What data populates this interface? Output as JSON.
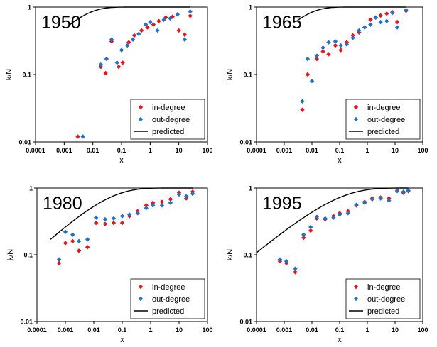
{
  "colors": {
    "in_degree": "#e8141c",
    "out_degree": "#1f72c9",
    "predicted": "#000000"
  },
  "chart_data": [
    {
      "type": "scatter",
      "title": "1950",
      "xlabel": "x",
      "ylabel": "k/N",
      "xscale": "log",
      "yscale": "log",
      "xlim": [
        0.0001,
        100
      ],
      "ylim": [
        0.01,
        1
      ],
      "x_ticks": [
        "0.0001",
        "0.001",
        "0.01",
        "0.1",
        "1",
        "10",
        "100"
      ],
      "y_ticks": [
        "0.01",
        "0.1",
        "1"
      ],
      "legend_position": "bottom-right",
      "series": [
        {
          "name": "in-degree",
          "marker": "diamond",
          "color": "in_degree",
          "points": [
            [
              0.003,
              0.012
            ],
            [
              0.019,
              0.13
            ],
            [
              0.028,
              0.105
            ],
            [
              0.045,
              0.31
            ],
            [
              0.08,
              0.13
            ],
            [
              0.11,
              0.15
            ],
            [
              0.18,
              0.3
            ],
            [
              0.28,
              0.38
            ],
            [
              0.5,
              0.45
            ],
            [
              0.8,
              0.5
            ],
            [
              1.3,
              0.55
            ],
            [
              2,
              0.62
            ],
            [
              3.5,
              0.7
            ],
            [
              6,
              0.72
            ],
            [
              10,
              0.45
            ],
            [
              16,
              0.39
            ],
            [
              25,
              0.74
            ]
          ]
        },
        {
          "name": "out-degree",
          "marker": "diamond",
          "color": "out_degree",
          "points": [
            [
              0.0045,
              0.012
            ],
            [
              0.019,
              0.14
            ],
            [
              0.03,
              0.17
            ],
            [
              0.045,
              0.33
            ],
            [
              0.07,
              0.15
            ],
            [
              0.1,
              0.23
            ],
            [
              0.16,
              0.27
            ],
            [
              0.25,
              0.33
            ],
            [
              0.4,
              0.4
            ],
            [
              0.7,
              0.55
            ],
            [
              1,
              0.6
            ],
            [
              1.8,
              0.45
            ],
            [
              3,
              0.65
            ],
            [
              5,
              0.68
            ],
            [
              9,
              0.78
            ],
            [
              16,
              0.33
            ],
            [
              25,
              0.86
            ]
          ]
        },
        {
          "name": "predicted",
          "type": "line",
          "color": "predicted",
          "x_range": [
            0.0015,
            25
          ],
          "x0": 0.0025,
          "note_formula": "1-exp(-(x/x0)^0.5)"
        }
      ]
    },
    {
      "type": "scatter",
      "title": "1965",
      "xlabel": "x",
      "ylabel": "k/N",
      "xscale": "log",
      "yscale": "log",
      "xlim": [
        0.0001,
        100
      ],
      "ylim": [
        0.01,
        1
      ],
      "x_ticks": [
        "0.0001",
        "0.001",
        "0.01",
        "0.1",
        "1",
        "10",
        "100"
      ],
      "y_ticks": [
        "0.01",
        "0.1",
        "1"
      ],
      "legend_position": "bottom-right",
      "series": [
        {
          "name": "in-degree",
          "marker": "diamond",
          "color": "in_degree",
          "points": [
            [
              0.0045,
              0.03
            ],
            [
              0.007,
              0.1
            ],
            [
              0.015,
              0.17
            ],
            [
              0.025,
              0.22
            ],
            [
              0.04,
              0.2
            ],
            [
              0.07,
              0.27
            ],
            [
              0.11,
              0.23
            ],
            [
              0.18,
              0.3
            ],
            [
              0.3,
              0.38
            ],
            [
              0.5,
              0.42
            ],
            [
              0.8,
              0.5
            ],
            [
              1.3,
              0.65
            ],
            [
              2,
              0.7
            ],
            [
              3,
              0.75
            ],
            [
              5,
              0.8
            ],
            [
              8,
              0.84
            ],
            [
              12,
              0.6
            ],
            [
              25,
              0.88
            ]
          ]
        },
        {
          "name": "out-degree",
          "marker": "diamond",
          "color": "out_degree",
          "points": [
            [
              0.0045,
              0.04
            ],
            [
              0.007,
              0.17
            ],
            [
              0.01,
              0.08
            ],
            [
              0.015,
              0.19
            ],
            [
              0.025,
              0.25
            ],
            [
              0.04,
              0.3
            ],
            [
              0.07,
              0.31
            ],
            [
              0.11,
              0.27
            ],
            [
              0.18,
              0.28
            ],
            [
              0.3,
              0.35
            ],
            [
              0.5,
              0.45
            ],
            [
              0.8,
              0.5
            ],
            [
              1.3,
              0.55
            ],
            [
              2,
              0.7
            ],
            [
              3,
              0.6
            ],
            [
              5,
              0.62
            ],
            [
              8,
              0.82
            ],
            [
              12,
              0.5
            ],
            [
              25,
              0.9
            ]
          ]
        },
        {
          "name": "predicted",
          "type": "line",
          "color": "predicted",
          "x_range": [
            0.003,
            25
          ],
          "x0": 0.003,
          "note_formula": "1-exp(-(x/x0)^0.5)"
        }
      ]
    },
    {
      "type": "scatter",
      "title": "1980",
      "xlabel": "x",
      "ylabel": "k/N",
      "xscale": "log",
      "yscale": "log",
      "xlim": [
        0.0001,
        100
      ],
      "ylim": [
        0.01,
        1
      ],
      "x_ticks": [
        "0.0001",
        "0.001",
        "0.01",
        "0.1",
        "1",
        "10",
        "100"
      ],
      "y_ticks": [
        "0.01",
        "0.1",
        "1"
      ],
      "legend_position": "bottom-right",
      "series": [
        {
          "name": "in-degree",
          "marker": "diamond",
          "color": "in_degree",
          "points": [
            [
              0.0006,
              0.075
            ],
            [
              0.001,
              0.15
            ],
            [
              0.0018,
              0.16
            ],
            [
              0.003,
              0.115
            ],
            [
              0.006,
              0.13
            ],
            [
              0.012,
              0.3
            ],
            [
              0.025,
              0.29
            ],
            [
              0.05,
              0.3
            ],
            [
              0.1,
              0.3
            ],
            [
              0.18,
              0.38
            ],
            [
              0.35,
              0.45
            ],
            [
              0.7,
              0.55
            ],
            [
              1.2,
              0.6
            ],
            [
              2.5,
              0.62
            ],
            [
              5,
              0.68
            ],
            [
              10,
              0.85
            ],
            [
              18,
              0.7
            ],
            [
              30,
              0.88
            ]
          ]
        },
        {
          "name": "out-degree",
          "marker": "diamond",
          "color": "out_degree",
          "points": [
            [
              0.0006,
              0.085
            ],
            [
              0.001,
              0.22
            ],
            [
              0.0018,
              0.2
            ],
            [
              0.003,
              0.16
            ],
            [
              0.006,
              0.17
            ],
            [
              0.012,
              0.36
            ],
            [
              0.025,
              0.34
            ],
            [
              0.05,
              0.35
            ],
            [
              0.1,
              0.38
            ],
            [
              0.18,
              0.4
            ],
            [
              0.35,
              0.42
            ],
            [
              0.7,
              0.5
            ],
            [
              1.2,
              0.55
            ],
            [
              2.5,
              0.55
            ],
            [
              5,
              0.6
            ],
            [
              10,
              0.8
            ],
            [
              18,
              0.75
            ],
            [
              30,
              0.82
            ]
          ]
        },
        {
          "name": "predicted",
          "type": "line",
          "color": "predicted",
          "x_range": [
            0.0003,
            30
          ],
          "x0": 0.02,
          "note_formula": "1-exp(-(x/x0)^0.4)"
        }
      ]
    },
    {
      "type": "scatter",
      "title": "1995",
      "xlabel": "x",
      "ylabel": "k/N",
      "xscale": "log",
      "yscale": "log",
      "xlim": [
        0.0001,
        100
      ],
      "ylim": [
        0.01,
        1
      ],
      "x_ticks": [
        "0.0001",
        "0.001",
        "0.01",
        "0.1",
        "1",
        "10",
        "100"
      ],
      "y_ticks": [
        "0.01",
        "0.1",
        "1"
      ],
      "legend_position": "bottom-right",
      "series": [
        {
          "name": "in-degree",
          "marker": "diamond",
          "color": "in_degree",
          "points": [
            [
              0.0007,
              0.08
            ],
            [
              0.0012,
              0.075
            ],
            [
              0.0025,
              0.055
            ],
            [
              0.005,
              0.18
            ],
            [
              0.009,
              0.23
            ],
            [
              0.015,
              0.35
            ],
            [
              0.03,
              0.34
            ],
            [
              0.06,
              0.38
            ],
            [
              0.1,
              0.42
            ],
            [
              0.2,
              0.45
            ],
            [
              0.4,
              0.55
            ],
            [
              0.8,
              0.62
            ],
            [
              1.5,
              0.7
            ],
            [
              3,
              0.72
            ],
            [
              6,
              0.7
            ],
            [
              12,
              0.92
            ],
            [
              20,
              0.85
            ],
            [
              30,
              0.9
            ]
          ]
        },
        {
          "name": "out-degree",
          "marker": "diamond",
          "color": "out_degree",
          "points": [
            [
              0.0007,
              0.085
            ],
            [
              0.0012,
              0.08
            ],
            [
              0.0025,
              0.062
            ],
            [
              0.005,
              0.2
            ],
            [
              0.009,
              0.26
            ],
            [
              0.015,
              0.37
            ],
            [
              0.03,
              0.35
            ],
            [
              0.06,
              0.36
            ],
            [
              0.1,
              0.4
            ],
            [
              0.2,
              0.42
            ],
            [
              0.4,
              0.56
            ],
            [
              0.8,
              0.6
            ],
            [
              1.5,
              0.68
            ],
            [
              3,
              0.7
            ],
            [
              6,
              0.65
            ],
            [
              12,
              0.9
            ],
            [
              20,
              0.88
            ],
            [
              30,
              0.92
            ]
          ]
        },
        {
          "name": "predicted",
          "type": "line",
          "color": "predicted",
          "x_range": [
            0.0001,
            30
          ],
          "x0": 0.05,
          "note_formula": "1-exp(-(x/x0)^0.35)"
        }
      ]
    }
  ]
}
